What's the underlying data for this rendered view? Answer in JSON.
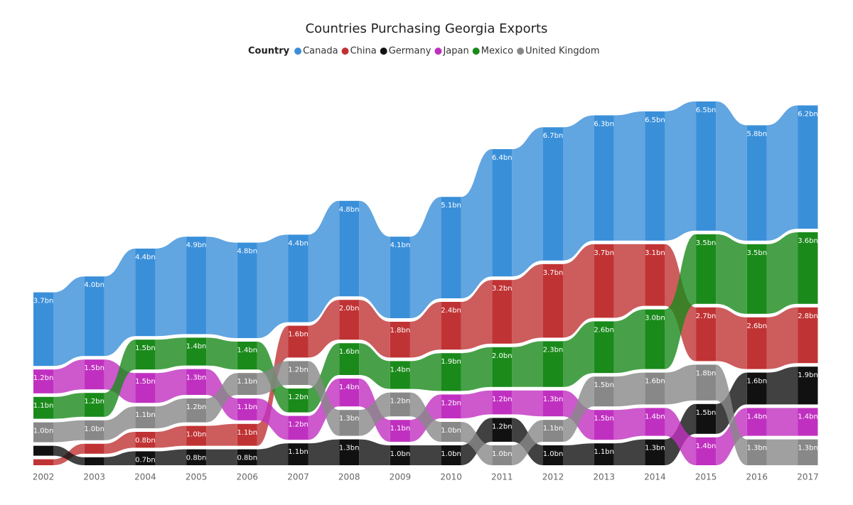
{
  "chart_data": {
    "type": "ribbon",
    "title": "Countries Purchasing Georgia Exports",
    "legend_title": "Country",
    "categories": [
      "2002",
      "2003",
      "2004",
      "2005",
      "2006",
      "2007",
      "2008",
      "2009",
      "2010",
      "2011",
      "2012",
      "2013",
      "2014",
      "2015",
      "2016",
      "2017"
    ],
    "series": [
      {
        "name": "Canada",
        "color": "#3a8fd9",
        "values": [
          3.7,
          4.0,
          4.4,
          4.9,
          4.8,
          4.4,
          4.8,
          4.1,
          5.1,
          6.4,
          6.7,
          6.3,
          6.5,
          6.5,
          5.8,
          6.2
        ],
        "value_labels": [
          "3.7bn",
          "4.0bn",
          "4.4bn",
          "4.9bn",
          "4.8bn",
          "4.4bn",
          "4.8bn",
          "4.1bn",
          "5.1bn",
          "6.4bn",
          "6.7bn",
          "6.3bn",
          "6.5bn",
          "6.5bn",
          "5.8bn",
          "6.2bn"
        ]
      },
      {
        "name": "China",
        "color": "#c03334",
        "values": [
          0.3,
          0.5,
          0.8,
          1.0,
          1.1,
          1.6,
          2.0,
          1.8,
          2.4,
          3.2,
          3.7,
          3.7,
          3.1,
          2.7,
          2.6,
          2.8
        ],
        "value_labels": [
          null,
          null,
          "0.8bn",
          "1.0bn",
          "1.1bn",
          "1.6bn",
          "2.0bn",
          "1.8bn",
          "2.4bn",
          "3.2bn",
          "3.7bn",
          "3.7bn",
          "3.1bn",
          "2.7bn",
          "2.6bn",
          "2.8bn"
        ]
      },
      {
        "name": "Germany",
        "color": "#111111",
        "values": [
          0.5,
          0.4,
          0.7,
          0.8,
          0.8,
          1.1,
          1.3,
          1.0,
          1.0,
          1.2,
          1.0,
          1.1,
          1.3,
          1.5,
          1.6,
          1.9
        ],
        "value_labels": [
          null,
          null,
          "0.7bn",
          "0.8bn",
          "0.8bn",
          "1.1bn",
          "1.3bn",
          "1.0bn",
          "1.0bn",
          "1.2bn",
          "1.0bn",
          "1.1bn",
          "1.3bn",
          "1.5bn",
          "1.6bn",
          "1.9bn"
        ]
      },
      {
        "name": "Japan",
        "color": "#c030c0",
        "values": [
          1.2,
          1.5,
          1.5,
          1.3,
          1.1,
          1.2,
          1.4,
          1.1,
          1.2,
          1.2,
          1.3,
          1.5,
          1.4,
          1.4,
          1.4,
          1.4
        ],
        "value_labels": [
          "1.2bn",
          "1.5bn",
          "1.5bn",
          "1.3bn",
          "1.1bn",
          "1.2bn",
          "1.4bn",
          "1.1bn",
          "1.2bn",
          "1.2bn",
          "1.3bn",
          "1.5bn",
          "1.4bn",
          "1.4bn",
          "1.4bn",
          "1.4bn"
        ]
      },
      {
        "name": "Mexico",
        "color": "#1a8a1a",
        "values": [
          1.1,
          1.2,
          1.5,
          1.4,
          1.4,
          1.2,
          1.6,
          1.4,
          1.9,
          2.0,
          2.3,
          2.6,
          3.0,
          3.5,
          3.5,
          3.6
        ],
        "value_labels": [
          "1.1bn",
          "1.2bn",
          "1.5bn",
          "1.4bn",
          "1.4bn",
          "1.2bn",
          "1.6bn",
          "1.4bn",
          "1.9bn",
          "2.0bn",
          "2.3bn",
          "2.6bn",
          "3.0bn",
          "3.5bn",
          "3.5bn",
          "3.6bn"
        ]
      },
      {
        "name": "United Kingdom",
        "color": "#888888",
        "values": [
          1.0,
          1.0,
          1.1,
          1.2,
          1.1,
          1.2,
          1.3,
          1.2,
          1.0,
          1.0,
          1.1,
          1.5,
          1.6,
          1.8,
          1.3,
          1.3
        ],
        "value_labels": [
          "1.0bn",
          "1.0bn",
          "1.1bn",
          "1.2bn",
          "1.1bn",
          "1.2bn",
          "1.3bn",
          "1.2bn",
          "1.0bn",
          "1.0bn",
          "1.1bn",
          "1.5bn",
          "1.6bn",
          "1.8bn",
          "1.3bn",
          "1.3bn"
        ]
      }
    ]
  }
}
